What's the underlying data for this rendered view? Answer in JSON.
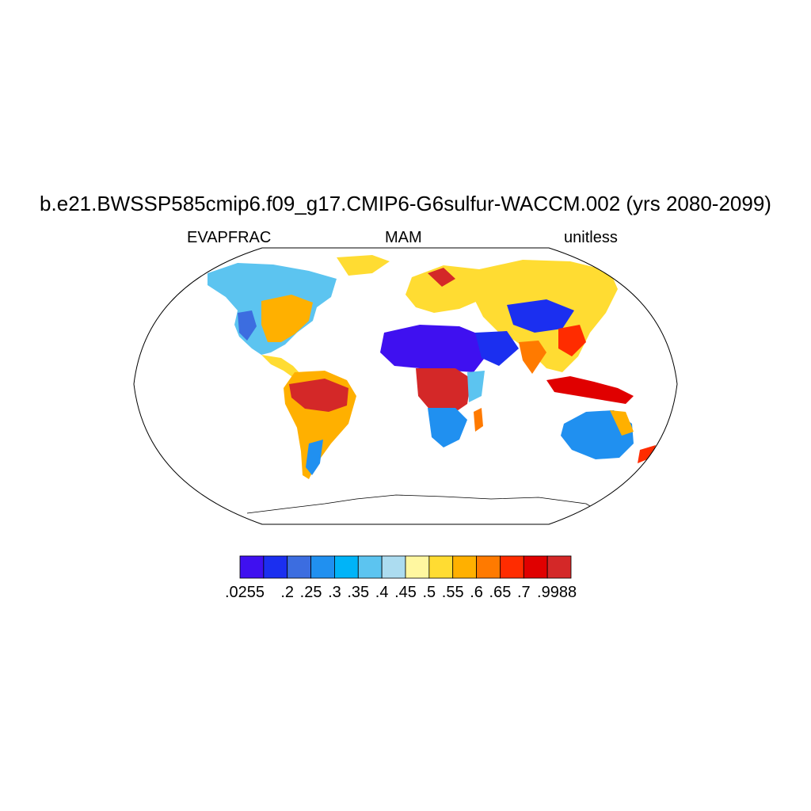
{
  "title": "b.e21.BWSSP585cmip6.f09_g17.CMIP6-G6sulfur-WACCM.002 (yrs 2080-2099)",
  "left_label": "EVAPFRAC",
  "center_label": "MAM",
  "right_label": "unitless",
  "colorbar": {
    "colors": [
      "#3f10f0",
      "#1b2ff0",
      "#3c6de0",
      "#2090f0",
      "#00b4f8",
      "#5cc4f0",
      "#acdcf0",
      "#fff7a0",
      "#ffdc32",
      "#ffb000",
      "#ff7a00",
      "#ff2c00",
      "#e00000",
      "#d42828"
    ],
    "labels": [
      ".0255",
      ".2",
      ".25",
      ".3",
      ".35",
      ".4",
      ".45",
      ".5",
      ".55",
      ".6",
      ".65",
      ".7",
      ".9988"
    ]
  }
}
